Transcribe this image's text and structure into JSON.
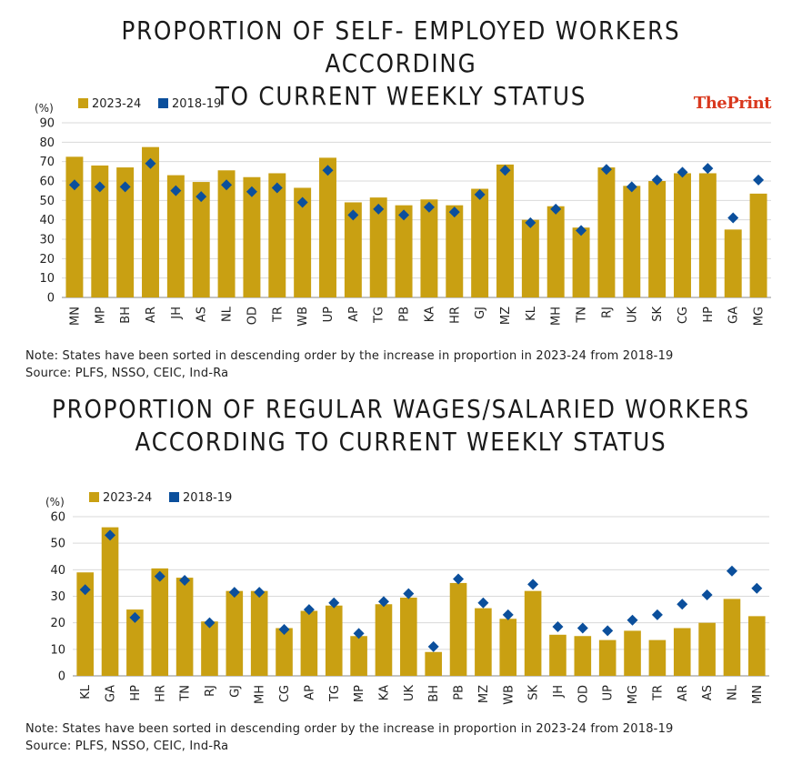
{
  "brand": {
    "part1": "The",
    "part2": "Print"
  },
  "charts": {
    "c1": {
      "title_line1": "PROPORTION OF SELF- EMPLOYED WORKERS ACCORDING",
      "title_line2": "TO CURRENT WEEKLY STATUS",
      "note": "Note: States have been sorted in descending order by the increase in proportion in 2023-24 from 2018-19",
      "source": "Source: PLFS, NSSO, CEIC, Ind-Ra"
    },
    "c2": {
      "title_line1": "PROPORTION OF REGULAR WAGES/SALARIED WORKERS",
      "title_line2": "ACCORDING TO CURRENT WEEKLY STATUS",
      "note": "Note: States have been sorted in descending order by the increase in proportion in 2023-24 from 2018-19",
      "source": "Source: PLFS, NSSO, CEIC, Ind-Ra"
    }
  },
  "colors": {
    "bar": "#c9a012",
    "marker": "#0b4f9c",
    "grid": "#d9d9d9",
    "axis": "#888888"
  },
  "chart_data": [
    {
      "type": "bar",
      "title": "PROPORTION OF SELF- EMPLOYED WORKERS ACCORDING TO CURRENT WEEKLY STATUS",
      "ylabel": "(%)",
      "ylim": [
        0,
        90
      ],
      "yticks": [
        0,
        10,
        20,
        30,
        40,
        50,
        60,
        70,
        80,
        90
      ],
      "categories": [
        "MN",
        "MP",
        "BH",
        "AR",
        "JH",
        "AS",
        "NL",
        "OD",
        "TR",
        "WB",
        "UP",
        "AP",
        "TG",
        "PB",
        "KA",
        "HR",
        "GJ",
        "MZ",
        "KL",
        "MH",
        "TN",
        "RJ",
        "UK",
        "SK",
        "CG",
        "HP",
        "GA",
        "MG"
      ],
      "series": [
        {
          "name": "2023-24",
          "kind": "bar",
          "values": [
            72.5,
            68,
            67,
            77.5,
            63,
            59.5,
            65.5,
            62,
            64,
            56.5,
            72,
            49,
            51.5,
            47.5,
            50.5,
            47.5,
            56,
            68.5,
            40,
            47,
            36,
            67,
            57.5,
            60,
            64,
            64,
            35,
            53.5
          ]
        },
        {
          "name": "2018-19",
          "kind": "marker",
          "values": [
            58,
            57,
            57,
            69,
            55,
            52,
            58,
            54.5,
            56.5,
            49,
            65.5,
            42.5,
            45.5,
            42.5,
            46.5,
            44,
            53,
            65.5,
            38.5,
            45.5,
            34.5,
            66,
            57,
            60.5,
            64.5,
            66.5,
            41,
            60.5
          ]
        }
      ]
    },
    {
      "type": "bar",
      "title": "PROPORTION OF REGULAR WAGES/SALARIED WORKERS ACCORDING TO CURRENT WEEKLY STATUS",
      "ylabel": "(%)",
      "ylim": [
        0,
        60
      ],
      "yticks": [
        0,
        10,
        20,
        30,
        40,
        50,
        60
      ],
      "categories": [
        "KL",
        "GA",
        "HP",
        "HR",
        "TN",
        "RJ",
        "GJ",
        "MH",
        "CG",
        "AP",
        "TG",
        "MP",
        "KA",
        "UK",
        "BH",
        "PB",
        "MZ",
        "WB",
        "SK",
        "JH",
        "OD",
        "UP",
        "MG",
        "TR",
        "AR",
        "AS",
        "NL",
        "MN"
      ],
      "series": [
        {
          "name": "2023-24",
          "kind": "bar",
          "values": [
            39,
            56,
            25,
            40.5,
            37,
            20.5,
            32,
            32,
            18,
            24.5,
            26.5,
            15,
            27,
            29.5,
            9,
            35,
            25.5,
            21.5,
            32,
            15.5,
            15,
            13.5,
            17,
            13.5,
            18,
            20,
            29,
            22.5
          ]
        },
        {
          "name": "2018-19",
          "kind": "marker",
          "values": [
            32.5,
            53,
            22,
            37.5,
            36,
            20,
            31.5,
            31.5,
            17.5,
            25,
            27.5,
            16,
            28,
            31,
            11,
            36.5,
            27.5,
            23,
            34.5,
            18.5,
            18,
            17,
            21,
            23,
            27,
            30.5,
            39.5,
            33
          ]
        }
      ]
    }
  ]
}
